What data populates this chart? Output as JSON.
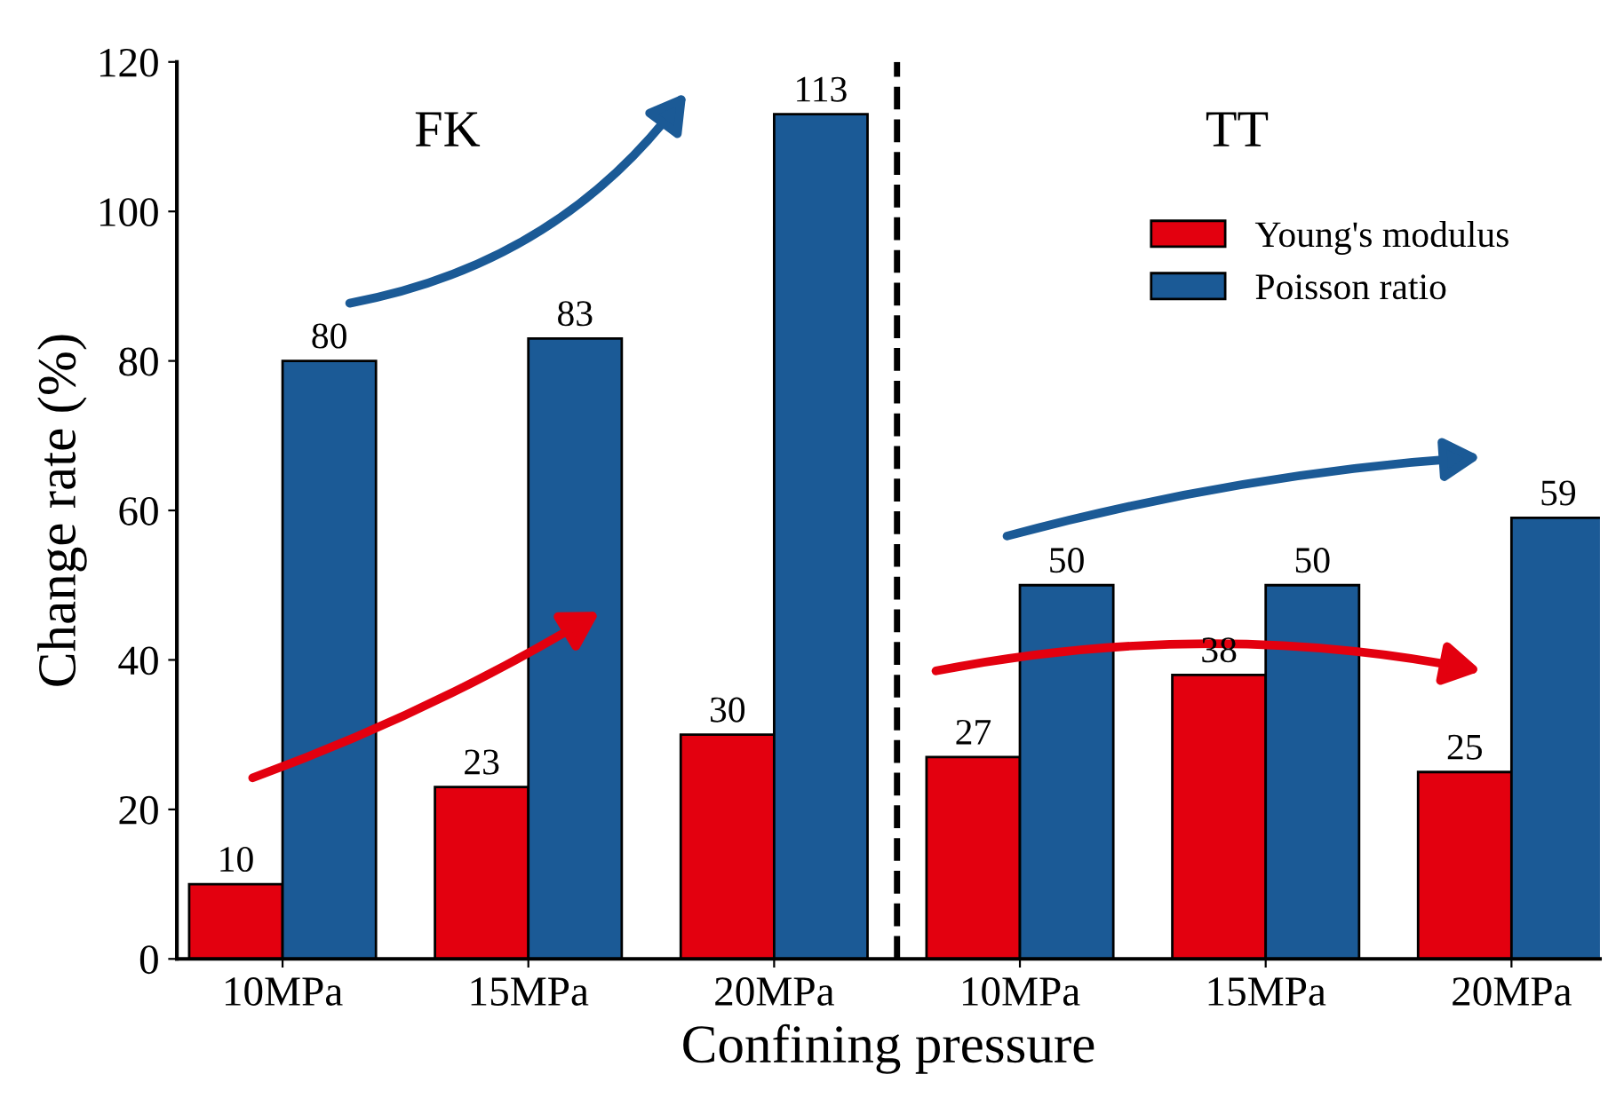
{
  "chart_data": {
    "type": "bar",
    "categories": [
      "10MPa",
      "15MPa",
      "20MPa",
      "10MPa",
      "15MPa",
      "20MPa"
    ],
    "series": [
      {
        "name": "Young's modulus",
        "color": "#e3000f",
        "values": [
          10,
          23,
          30,
          27,
          38,
          25
        ]
      },
      {
        "name": "Poisson ratio",
        "color": "#1b5a96",
        "values": [
          80,
          83,
          113,
          50,
          50,
          59
        ]
      }
    ],
    "xlabel": "Confining pressure",
    "ylabel": "Change rate (%)",
    "ylim": [
      0,
      120
    ],
    "yticks": [
      0,
      20,
      40,
      60,
      80,
      100,
      120
    ],
    "data_labels": true,
    "legend": "top right",
    "grid": false,
    "annotations": [
      "FK",
      "TT"
    ]
  }
}
